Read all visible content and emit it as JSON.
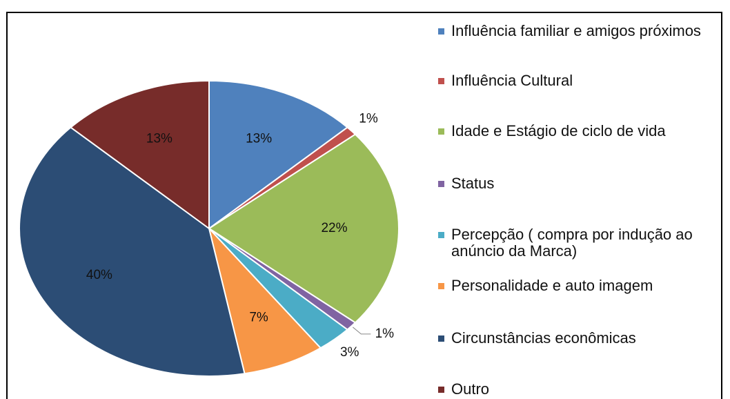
{
  "chart_data": {
    "type": "pie",
    "categories": [
      "Influência familiar e amigos próximos",
      "Influência Cultural",
      "Idade e Estágio de ciclo de vida",
      "Status",
      "Percepção ( compra por indução ao anúncio da Marca)",
      "Personalidade e auto imagem",
      "Circunstâncias econômicas",
      "Outro"
    ],
    "values": [
      13,
      1,
      22,
      1,
      3,
      7,
      40,
      13
    ],
    "value_labels": [
      "13%",
      "1%",
      "22%",
      "1%",
      "3%",
      "7%",
      "40%",
      "13%"
    ],
    "colors": [
      "#4f81bd",
      "#c0504d",
      "#9bbb59",
      "#8064a2",
      "#4bacc6",
      "#f79646",
      "#2c4d75",
      "#772c2a"
    ],
    "legend": "right"
  }
}
